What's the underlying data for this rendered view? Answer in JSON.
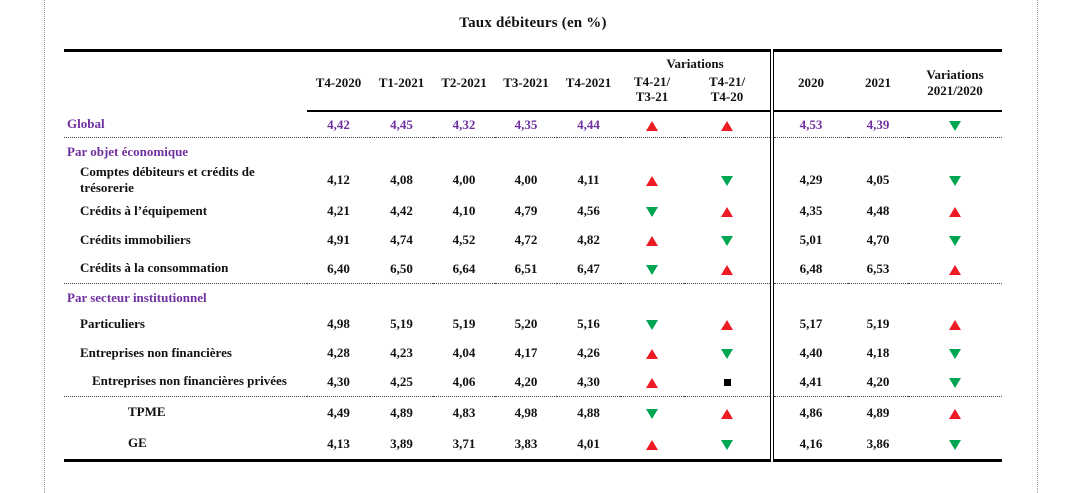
{
  "title": "Taux débiteurs (en %)",
  "colors": {
    "up": "#ED1C24",
    "down": "#00A551",
    "flat": "#000000",
    "accent_purple": "#7030A0",
    "page_border": "#9a9a9a"
  },
  "icons": {
    "up": "red-up-triangle",
    "down": "green-down-triangle",
    "flat": "black-square"
  },
  "header": {
    "quarters": [
      "T4-2020",
      "T1-2021",
      "T2-2021",
      "T3-2021",
      "T4-2021"
    ],
    "variations_group": "Variations",
    "variation_cols": [
      {
        "line1": "T4-21/",
        "line2": "T3-21"
      },
      {
        "line1": "T4-21/",
        "line2": "T4-20"
      }
    ],
    "years": [
      "2020",
      "2021"
    ],
    "variations_year": {
      "line1": "Variations",
      "line2": "2021/2020"
    }
  },
  "rows": [
    {
      "type": "data",
      "label": "Global",
      "accent": true,
      "indent": 0,
      "values": [
        "4,42",
        "4,45",
        "4,32",
        "4,35",
        "4,44"
      ],
      "var_q": "up",
      "var_y": "up",
      "years": [
        "4,53",
        "4,39"
      ],
      "var_yy": "down",
      "separator_after": true,
      "first": true
    },
    {
      "type": "section",
      "label": "Par objet économique"
    },
    {
      "type": "data",
      "label": "Comptes débiteurs et crédits de trésorerie",
      "indent": 1,
      "values": [
        "4,12",
        "4,08",
        "4,00",
        "4,00",
        "4,11"
      ],
      "var_q": "up",
      "var_y": "down",
      "years": [
        "4,29",
        "4,05"
      ],
      "var_yy": "down"
    },
    {
      "type": "data",
      "label": "Crédits à l’équipement",
      "indent": 1,
      "values": [
        "4,21",
        "4,42",
        "4,10",
        "4,79",
        "4,56"
      ],
      "var_q": "down",
      "var_y": "up",
      "years": [
        "4,35",
        "4,48"
      ],
      "var_yy": "up"
    },
    {
      "type": "data",
      "label": "Crédits immobiliers",
      "indent": 1,
      "values": [
        "4,91",
        "4,74",
        "4,52",
        "4,72",
        "4,82"
      ],
      "var_q": "up",
      "var_y": "down",
      "years": [
        "5,01",
        "4,70"
      ],
      "var_yy": "down"
    },
    {
      "type": "data",
      "label": "Crédits à la consommation",
      "indent": 1,
      "values": [
        "6,40",
        "6,50",
        "6,64",
        "6,51",
        "6,47"
      ],
      "var_q": "down",
      "var_y": "up",
      "years": [
        "6,48",
        "6,53"
      ],
      "var_yy": "up",
      "separator_after": true
    },
    {
      "type": "section",
      "label": "Par secteur institutionnel"
    },
    {
      "type": "data",
      "label": "Particuliers",
      "indent": 1,
      "values": [
        "4,98",
        "5,19",
        "5,19",
        "5,20",
        "5,16"
      ],
      "var_q": "down",
      "var_y": "up",
      "years": [
        "5,17",
        "5,19"
      ],
      "var_yy": "up"
    },
    {
      "type": "data",
      "label": "Entreprises non financières",
      "indent": 1,
      "values": [
        "4,28",
        "4,23",
        "4,04",
        "4,17",
        "4,26"
      ],
      "var_q": "up",
      "var_y": "down",
      "years": [
        "4,40",
        "4,18"
      ],
      "var_yy": "down"
    },
    {
      "type": "data",
      "label": "Entreprises non financières privées",
      "indent": 2,
      "values": [
        "4,30",
        "4,25",
        "4,06",
        "4,20",
        "4,30"
      ],
      "var_q": "up",
      "var_y": "flat",
      "years": [
        "4,41",
        "4,20"
      ],
      "var_yy": "down",
      "separator_after": true
    },
    {
      "type": "data",
      "label": "TPME",
      "indent": 3,
      "values": [
        "4,49",
        "4,89",
        "4,83",
        "4,98",
        "4,88"
      ],
      "var_q": "down",
      "var_y": "up",
      "years": [
        "4,86",
        "4,89"
      ],
      "var_yy": "up",
      "tall": true
    },
    {
      "type": "data",
      "label": "GE",
      "indent": 3,
      "values": [
        "4,13",
        "3,89",
        "3,71",
        "3,83",
        "4,01"
      ],
      "var_q": "up",
      "var_y": "down",
      "years": [
        "4,16",
        "3,86"
      ],
      "var_yy": "down",
      "tall": true
    }
  ]
}
